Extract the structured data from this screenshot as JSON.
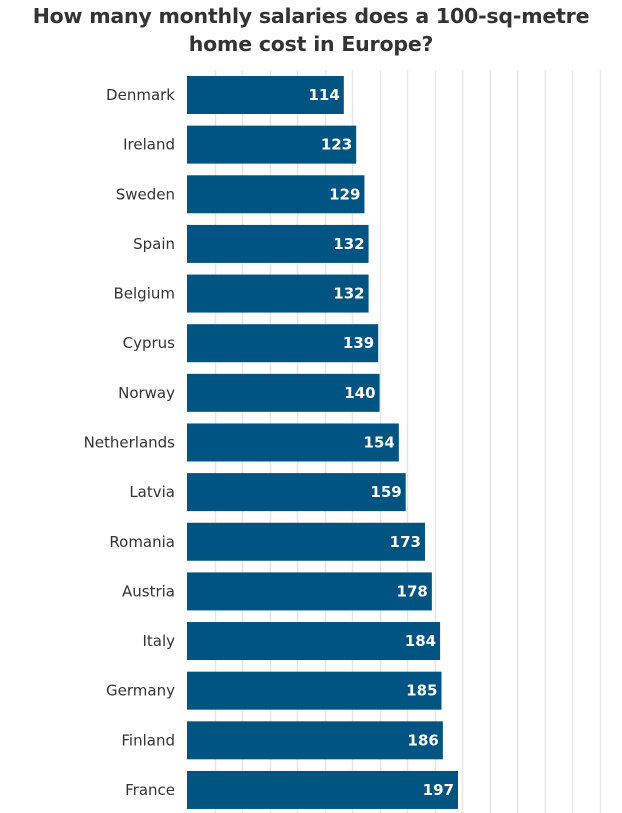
{
  "colors": {
    "bar": "#005481",
    "bar_label": "#ffffff",
    "gridline": "#e6e6e6",
    "text": "#333333",
    "background": "#ffffff"
  },
  "chart_data": {
    "type": "bar",
    "orientation": "horizontal",
    "title": "How many monthly salaries does a 100-sq-metre home cost in Europe?",
    "categories": [
      "Denmark",
      "Ireland",
      "Sweden",
      "Spain",
      "Belgium",
      "Cyprus",
      "Norway",
      "Netherlands",
      "Latvia",
      "Romania",
      "Austria",
      "Italy",
      "Germany",
      "Finland",
      "France"
    ],
    "values": [
      114,
      123,
      129,
      132,
      132,
      139,
      140,
      154,
      159,
      173,
      178,
      184,
      185,
      186,
      197
    ],
    "data_labels": true,
    "xlim": [
      0,
      300
    ],
    "grid": true,
    "legend": "none"
  }
}
